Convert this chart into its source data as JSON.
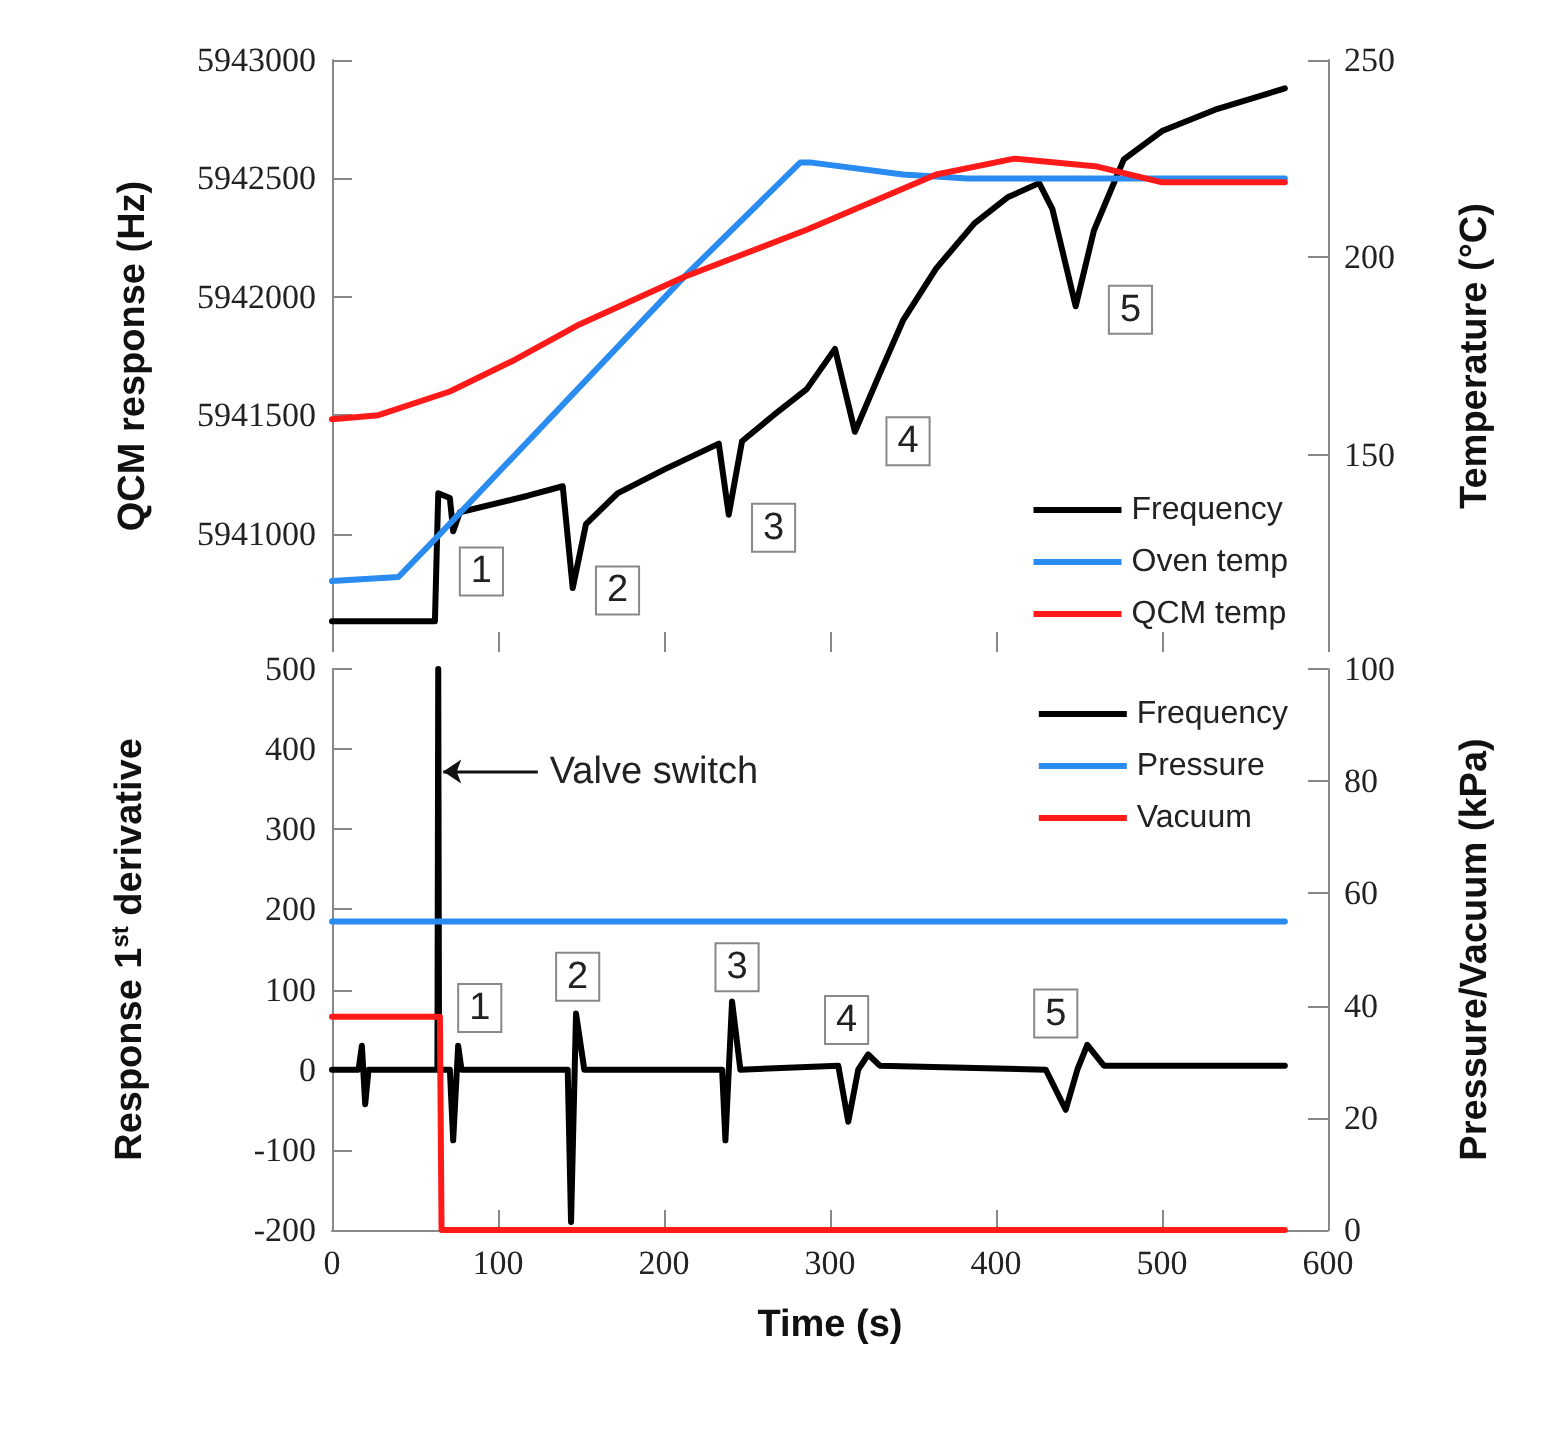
{
  "chart_data": [
    {
      "type": "line",
      "ylabel": "QCM response (Hz)",
      "y2label": "Temperature (°C)",
      "xlim": [
        0,
        600
      ],
      "xticks": [
        0,
        100,
        200,
        300,
        400,
        500,
        600
      ],
      "ylim": [
        5940500,
        5943000
      ],
      "yticks": [
        5941000,
        5941500,
        5942000,
        5942500,
        5943000
      ],
      "y2lim": [
        100,
        250
      ],
      "y2ticks": [
        150,
        200,
        250
      ],
      "tick_labels": "y",
      "legend": "bottom right",
      "grid": false,
      "marker": "none",
      "line_style": "solid",
      "series": [
        {
          "name": "Frequency",
          "color": "#000000",
          "x": [
            0,
            62,
            64,
            71,
            73,
            77,
            118,
            139,
            145,
            153,
            172,
            200,
            233,
            239,
            247,
            266,
            286,
            303,
            315,
            329,
            344,
            364,
            387,
            407,
            426,
            434,
            448,
            459,
            477,
            500,
            532,
            574
          ],
          "values": [
            5940630,
            5940630,
            5941170,
            5941150,
            5941010,
            5941090,
            5941160,
            5941200,
            5940770,
            5941040,
            5941170,
            5941270,
            5941380,
            5941080,
            5941390,
            5941500,
            5941610,
            5941780,
            5941430,
            5941660,
            5941900,
            5942120,
            5942310,
            5942420,
            5942480,
            5942370,
            5941960,
            5942280,
            5942580,
            5942700,
            5942790,
            5942880
          ]
        },
        {
          "name": "Oven temp",
          "color": "#2a8cf0",
          "axis": "y2",
          "x": [
            0,
            40,
            63,
            212,
            282,
            289,
            344,
            383,
            574
          ],
          "values": [
            118,
            119,
            129,
            195,
            224,
            224,
            221,
            220,
            220
          ]
        },
        {
          "name": "QCM temp",
          "color": "#ff1a1a",
          "axis": "y2",
          "x": [
            0,
            28,
            71,
            110,
            149,
            212,
            286,
            364,
            411,
            461,
            500,
            574
          ],
          "values": [
            159,
            160,
            166,
            174,
            183,
            195,
            207,
            221,
            225,
            223,
            219,
            219
          ]
        }
      ],
      "annotations": [
        {
          "text": "1",
          "x": 90,
          "y": 5940840
        },
        {
          "text": "2",
          "x": 172,
          "y": 5940760
        },
        {
          "text": "3",
          "x": 266,
          "y": 5941025
        },
        {
          "text": "4",
          "x": 347,
          "y": 5941390
        },
        {
          "text": "5",
          "x": 481,
          "y": 5941945
        }
      ]
    },
    {
      "type": "line",
      "xlabel": "Time (s)",
      "ylabel": "Response 1$^{st}$ derivative",
      "y2label": "Pressure/Vacuum (kPa)",
      "xlim": [
        0,
        600
      ],
      "xticks": [
        0,
        100,
        200,
        300,
        400,
        500,
        600
      ],
      "ylim": [
        -200,
        500
      ],
      "yticks": [
        -200,
        -100,
        0,
        100,
        200,
        300,
        400,
        500
      ],
      "y2lim": [
        0,
        100
      ],
      "y2ticks": [
        0,
        20,
        40,
        60,
        80,
        100
      ],
      "legend": "top right",
      "grid": false,
      "marker": "none",
      "line_style": "solid",
      "series": [
        {
          "name": "Frequency",
          "color": "#000000",
          "x": [
            0,
            16,
            18,
            20,
            22,
            62,
            63.5,
            64,
            64.5,
            71,
            73,
            76,
            78,
            142,
            144,
            147,
            152,
            235,
            237,
            241,
            246,
            305,
            311,
            317,
            323,
            330,
            430,
            442,
            449,
            455,
            465,
            574
          ],
          "values": [
            0,
            0,
            30,
            -43,
            0,
            0,
            0,
            500,
            0,
            0,
            -88,
            30,
            0,
            0,
            -190,
            70,
            0,
            0,
            -88,
            85,
            0,
            5,
            -65,
            0,
            19,
            5,
            0,
            -50,
            0,
            31,
            5,
            5
          ]
        },
        {
          "name": "Pressure",
          "color": "#2a8cf0",
          "axis": "y2",
          "x": [
            0,
            574
          ],
          "values": [
            55,
            55
          ]
        },
        {
          "name": "Vacuum",
          "color": "#ff1a1a",
          "axis": "y2",
          "x": [
            0,
            65,
            66,
            574
          ],
          "values": [
            38,
            38,
            0,
            0
          ]
        }
      ],
      "annotations": [
        {
          "text": "Valve switch",
          "x": 64,
          "y": 372
        },
        {
          "text": "1",
          "x": 89,
          "y": 77
        },
        {
          "text": "2",
          "x": 148,
          "y": 116
        },
        {
          "text": "3",
          "x": 244,
          "y": 128
        },
        {
          "text": "4",
          "x": 310,
          "y": 62
        },
        {
          "text": "5",
          "x": 436,
          "y": 70
        }
      ]
    }
  ]
}
